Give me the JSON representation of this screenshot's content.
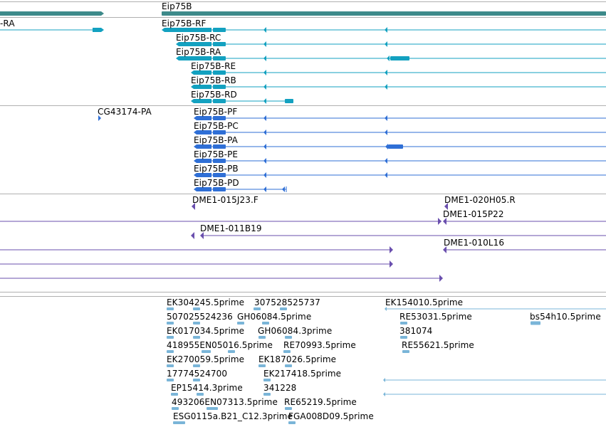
{
  "colors": {
    "gene": "#3d8a8a",
    "transcript": "#13a1c0",
    "protein": "#2f6fd6",
    "clone": "#6a4fae",
    "est": "#7ab5d8",
    "separator": "#b0b0b0"
  },
  "icons": {
    "intron_direction": "reverse-arrowhead-icon",
    "feature_end": "pointed-end-icon"
  },
  "tracks": {
    "genes": {
      "features": [
        {
          "label": "Eip75B"
        }
      ]
    },
    "transcripts": {
      "features": [
        {
          "label": "-RA"
        },
        {
          "label": "Eip75B-RF"
        },
        {
          "label": "Eip75B-RC"
        },
        {
          "label": "Eip75B-RA"
        },
        {
          "label": "Eip75B-RE"
        },
        {
          "label": "Eip75B-RB"
        },
        {
          "label": "Eip75B-RD"
        }
      ]
    },
    "proteins": {
      "features": [
        {
          "label": "CG43174-PA"
        },
        {
          "label": "Eip75B-PF"
        },
        {
          "label": "Eip75B-PC"
        },
        {
          "label": "Eip75B-PA"
        },
        {
          "label": "Eip75B-PE"
        },
        {
          "label": "Eip75B-PB"
        },
        {
          "label": "Eip75B-PD"
        }
      ]
    },
    "clones": {
      "features": [
        {
          "label": "DME1-015J23.F"
        },
        {
          "label": "DME1-020H05.R"
        },
        {
          "label": "DME1-015P22"
        },
        {
          "label": "DME1-011B19"
        },
        {
          "label": "DME1-010L16"
        }
      ]
    },
    "ests": {
      "features": [
        {
          "label": "EK304245.5prime"
        },
        {
          "label": "307528525737"
        },
        {
          "label": "EK154010.5prime"
        },
        {
          "label": "507025524236"
        },
        {
          "label": "GH06084.5prime"
        },
        {
          "label": "RE53031.5prime"
        },
        {
          "label": "bs54h10.5prime"
        },
        {
          "label": "EK017034.5prime"
        },
        {
          "label": "GH06084.3prime"
        },
        {
          "label": "381074"
        },
        {
          "label": "418955EN05016.5prime"
        },
        {
          "label": "RE70993.5prime"
        },
        {
          "label": "RE55621.5prime"
        },
        {
          "label": "EK270059.5prime"
        },
        {
          "label": "EK187026.5prime"
        },
        {
          "label": "17774524700"
        },
        {
          "label": "EK217418.5prime"
        },
        {
          "label": "EP15414.3prime"
        },
        {
          "label": "341228"
        },
        {
          "label": "493206EN07313.5prime"
        },
        {
          "label": "RE65219.5prime"
        },
        {
          "label": "ESG0115a.B21_C12.3prime"
        },
        {
          "label": "FGA008D09.5prime"
        }
      ]
    }
  }
}
